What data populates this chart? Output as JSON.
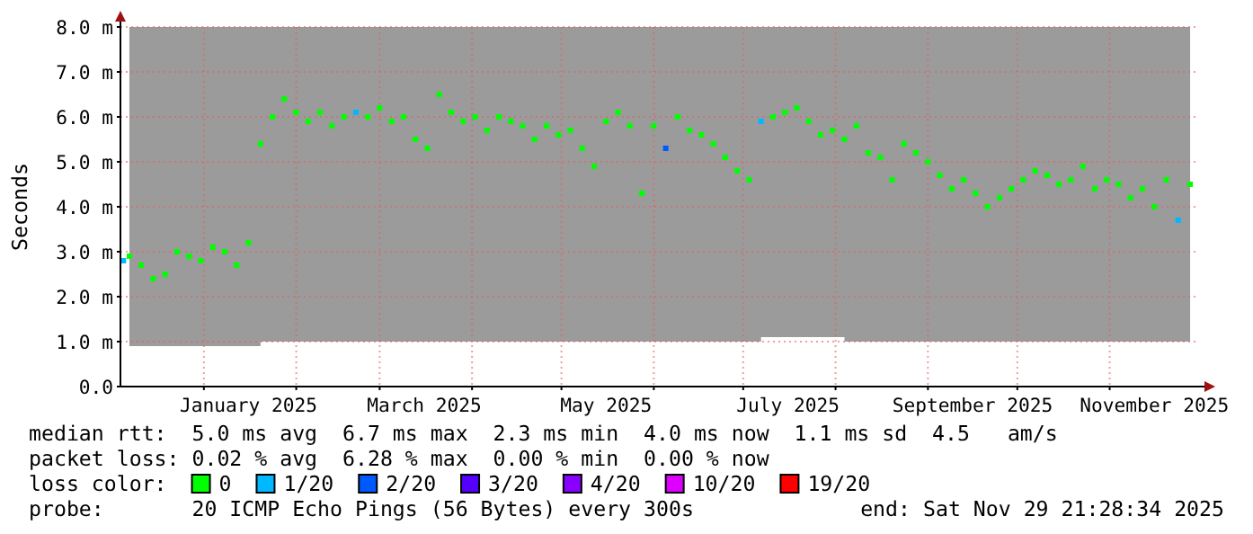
{
  "chart_data": {
    "type": "scatter",
    "ylabel": "Seconds",
    "legend_title": "loss color:",
    "legend": "bottom",
    "grid": true,
    "marker": "square",
    "xlim": [
      "2024-12-04",
      "2025-12-01"
    ],
    "xticks": [
      {
        "value": "2025-01-01",
        "label": null
      },
      {
        "value": "2025-01-16",
        "label": "January 2025"
      },
      {
        "value": "2025-02-01",
        "label": null
      },
      {
        "value": "2025-03-01",
        "label": null
      },
      {
        "value": "2025-03-16",
        "label": "March 2025"
      },
      {
        "value": "2025-04-01",
        "label": null
      },
      {
        "value": "2025-05-01",
        "label": null
      },
      {
        "value": "2025-05-16",
        "label": "May 2025"
      },
      {
        "value": "2025-06-01",
        "label": null
      },
      {
        "value": "2025-07-01",
        "label": null
      },
      {
        "value": "2025-07-16",
        "label": "July 2025"
      },
      {
        "value": "2025-08-01",
        "label": null
      },
      {
        "value": "2025-09-01",
        "label": null
      },
      {
        "value": "2025-09-16",
        "label": "September 2025"
      },
      {
        "value": "2025-10-01",
        "label": null
      },
      {
        "value": "2025-11-01",
        "label": null
      },
      {
        "value": "2025-11-16",
        "label": "November 2025"
      }
    ],
    "ylim": [
      0,
      8
    ],
    "yticks": [
      {
        "value": 0,
        "label": "0.0"
      },
      {
        "value": 1,
        "label": "1.0 m"
      },
      {
        "value": 2,
        "label": "2.0 m"
      },
      {
        "value": 3,
        "label": "3.0 m"
      },
      {
        "value": 4,
        "label": "4.0 m"
      },
      {
        "value": 5,
        "label": "5.0 m"
      },
      {
        "value": 6,
        "label": "6.0 m"
      },
      {
        "value": 7,
        "label": "7.0 m"
      },
      {
        "value": 8,
        "label": "8.0 m"
      }
    ],
    "annotations": [
      "median rtt:  5.0 ms avg  6.7 ms max  2.3 ms min  4.0 ms now  1.1 ms sd  4.5   am/s",
      "packet loss: 0.02 % avg  6.28 % max  0.00 % min  0.00 % now",
      "probe:       20 ICMP Echo Pings (56 Bytes) every 300s",
      "end: Sat Nov 29 21:28:34 2025"
    ],
    "series": [
      {
        "name": "0",
        "color": "#00ff00",
        "x": [
          "2024-12-07",
          "2024-12-11",
          "2024-12-15",
          "2024-12-19",
          "2024-12-23",
          "2024-12-27",
          "2024-12-31",
          "2025-01-04",
          "2025-01-08",
          "2025-01-12",
          "2025-01-16",
          "2025-01-20",
          "2025-01-24",
          "2025-01-28",
          "2025-02-01",
          "2025-02-05",
          "2025-02-09",
          "2025-02-13",
          "2025-02-17",
          "2025-02-21",
          "2025-02-25",
          "2025-03-01",
          "2025-03-05",
          "2025-03-09",
          "2025-03-13",
          "2025-03-17",
          "2025-03-21",
          "2025-03-25",
          "2025-03-29",
          "2025-04-02",
          "2025-04-06",
          "2025-04-10",
          "2025-04-14",
          "2025-04-18",
          "2025-04-22",
          "2025-04-26",
          "2025-04-30",
          "2025-05-04",
          "2025-05-08",
          "2025-05-12",
          "2025-05-16",
          "2025-05-20",
          "2025-05-24",
          "2025-05-28",
          "2025-06-01",
          "2025-06-05",
          "2025-06-09",
          "2025-06-13",
          "2025-06-17",
          "2025-06-21",
          "2025-06-25",
          "2025-06-29",
          "2025-07-03",
          "2025-07-07",
          "2025-07-11",
          "2025-07-15",
          "2025-07-19",
          "2025-07-23",
          "2025-07-27",
          "2025-07-31",
          "2025-08-04",
          "2025-08-08",
          "2025-08-12",
          "2025-08-16",
          "2025-08-20",
          "2025-08-24",
          "2025-08-28",
          "2025-09-01",
          "2025-09-05",
          "2025-09-09",
          "2025-09-13",
          "2025-09-17",
          "2025-09-21",
          "2025-09-25",
          "2025-09-29",
          "2025-10-03",
          "2025-10-07",
          "2025-10-11",
          "2025-10-15",
          "2025-10-19",
          "2025-10-23",
          "2025-10-27",
          "2025-10-31",
          "2025-11-04",
          "2025-11-08",
          "2025-11-12",
          "2025-11-16",
          "2025-11-20",
          "2025-11-24",
          "2025-11-28"
        ],
        "values": [
          2.9,
          2.7,
          2.4,
          2.5,
          3.0,
          2.9,
          2.8,
          3.1,
          3.0,
          2.7,
          3.2,
          5.4,
          6.0,
          6.4,
          6.1,
          5.9,
          6.1,
          5.8,
          6.0,
          null,
          6.0,
          6.2,
          5.9,
          6.0,
          5.5,
          5.3,
          6.5,
          6.1,
          5.9,
          6.0,
          5.7,
          6.0,
          5.9,
          5.8,
          5.5,
          5.8,
          5.6,
          5.7,
          5.3,
          4.9,
          5.9,
          6.1,
          5.8,
          4.3,
          5.8,
          null,
          6.0,
          5.7,
          5.6,
          5.4,
          5.1,
          4.8,
          4.6,
          null,
          6.0,
          6.1,
          6.2,
          5.9,
          5.6,
          5.7,
          5.5,
          5.8,
          5.2,
          5.1,
          4.6,
          5.4,
          5.2,
          5.0,
          4.7,
          4.4,
          4.6,
          4.3,
          4.0,
          4.2,
          4.4,
          4.6,
          4.8,
          4.7,
          4.5,
          4.6,
          4.9,
          4.4,
          4.6,
          4.5,
          4.2,
          4.4,
          4.0,
          4.6,
          null,
          4.5
        ],
        "lower": [
          0.9,
          0.9,
          0.9,
          0.9,
          0.9,
          0.9,
          0.9,
          0.9,
          0.9,
          0.9,
          0.9,
          1.0,
          1.0,
          1.0,
          1.0,
          1.0,
          1.0,
          1.0,
          1.0,
          1.0,
          1.0,
          1.0,
          1.0,
          1.0,
          1.0,
          1.0,
          1.0,
          1.0,
          1.0,
          1.0,
          1.0,
          1.0,
          1.0,
          1.0,
          1.0,
          1.0,
          1.0,
          1.0,
          1.0,
          1.0,
          1.0,
          1.0,
          1.0,
          1.0,
          1.0,
          1.0,
          1.0,
          1.0,
          1.0,
          1.0,
          1.0,
          1.0,
          1.0,
          1.1,
          1.1,
          1.1,
          1.1,
          1.1,
          1.1,
          1.1,
          1.0,
          1.0,
          1.0,
          1.0,
          1.0,
          1.0,
          1.0,
          1.0,
          1.0,
          1.0,
          1.0,
          1.0,
          1.0,
          1.0,
          1.0,
          1.0,
          1.0,
          1.0,
          1.0,
          1.0,
          1.0,
          1.0,
          1.0,
          1.0,
          1.0,
          1.0,
          1.0,
          1.0,
          1.0,
          1.0
        ],
        "upper": [
          8,
          8,
          8,
          8,
          8,
          8,
          8,
          8,
          8,
          8,
          8,
          8,
          8,
          8,
          8,
          8,
          8,
          8,
          8,
          8,
          8,
          8,
          8,
          8,
          8,
          8,
          8,
          8,
          8,
          8,
          8,
          8,
          8,
          8,
          8,
          8,
          8,
          8,
          8,
          8,
          8,
          8,
          8,
          8,
          8,
          8,
          8,
          8,
          8,
          8,
          8,
          8,
          8,
          8,
          8,
          8,
          8,
          8,
          8,
          8,
          8,
          8,
          8,
          8,
          8,
          8,
          8,
          8,
          8,
          8,
          8,
          8,
          8,
          8,
          8,
          8,
          8,
          8,
          8,
          8,
          8,
          8,
          8,
          8,
          8,
          8,
          8,
          8,
          8,
          8
        ]
      },
      {
        "name": "1/20",
        "color": "#00b8ff",
        "x": [
          "2024-12-05",
          "2025-02-21",
          "2025-07-07",
          "2025-11-24"
        ],
        "values": [
          2.8,
          6.1,
          5.9,
          3.7
        ]
      },
      {
        "name": "2/20",
        "color": "#0059ff",
        "x": [
          "2025-06-05"
        ],
        "values": [
          5.3
        ]
      },
      {
        "name": "3/20",
        "color": "#5500ff"
      },
      {
        "name": "4/20",
        "color": "#8800ff"
      },
      {
        "name": "10/20",
        "color": "#dd00ff"
      },
      {
        "name": "19/20",
        "color": "#ff0000"
      }
    ]
  }
}
